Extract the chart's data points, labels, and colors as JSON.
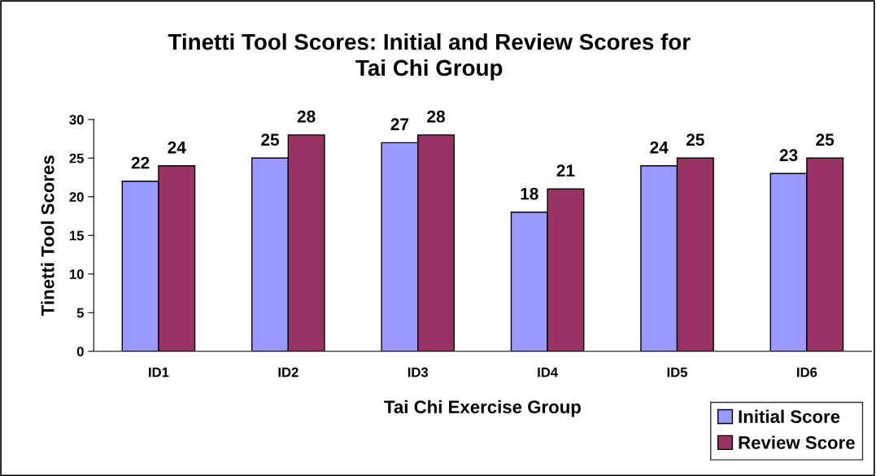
{
  "chart_data": {
    "type": "bar",
    "title": "Tinetti Tool Scores: Initial and Review Scores for\nTai Chi Group",
    "xlabel": "Tai Chi Exercise Group",
    "ylabel": "Tinetti Tool Scores",
    "categories": [
      "ID1",
      "ID2",
      "ID3",
      "ID4",
      "ID5",
      "ID6"
    ],
    "series": [
      {
        "name": "Initial Score",
        "color": "#9999ff",
        "values": [
          22,
          25,
          27,
          18,
          24,
          23
        ]
      },
      {
        "name": "Review Score",
        "color": "#993366",
        "values": [
          24,
          28,
          28,
          21,
          25,
          25
        ]
      }
    ],
    "ylim": [
      0,
      30
    ],
    "yticks": [
      0,
      5,
      10,
      15,
      20,
      25,
      30
    ],
    "grid": false,
    "legend": "bottom right",
    "data_labels": true
  }
}
